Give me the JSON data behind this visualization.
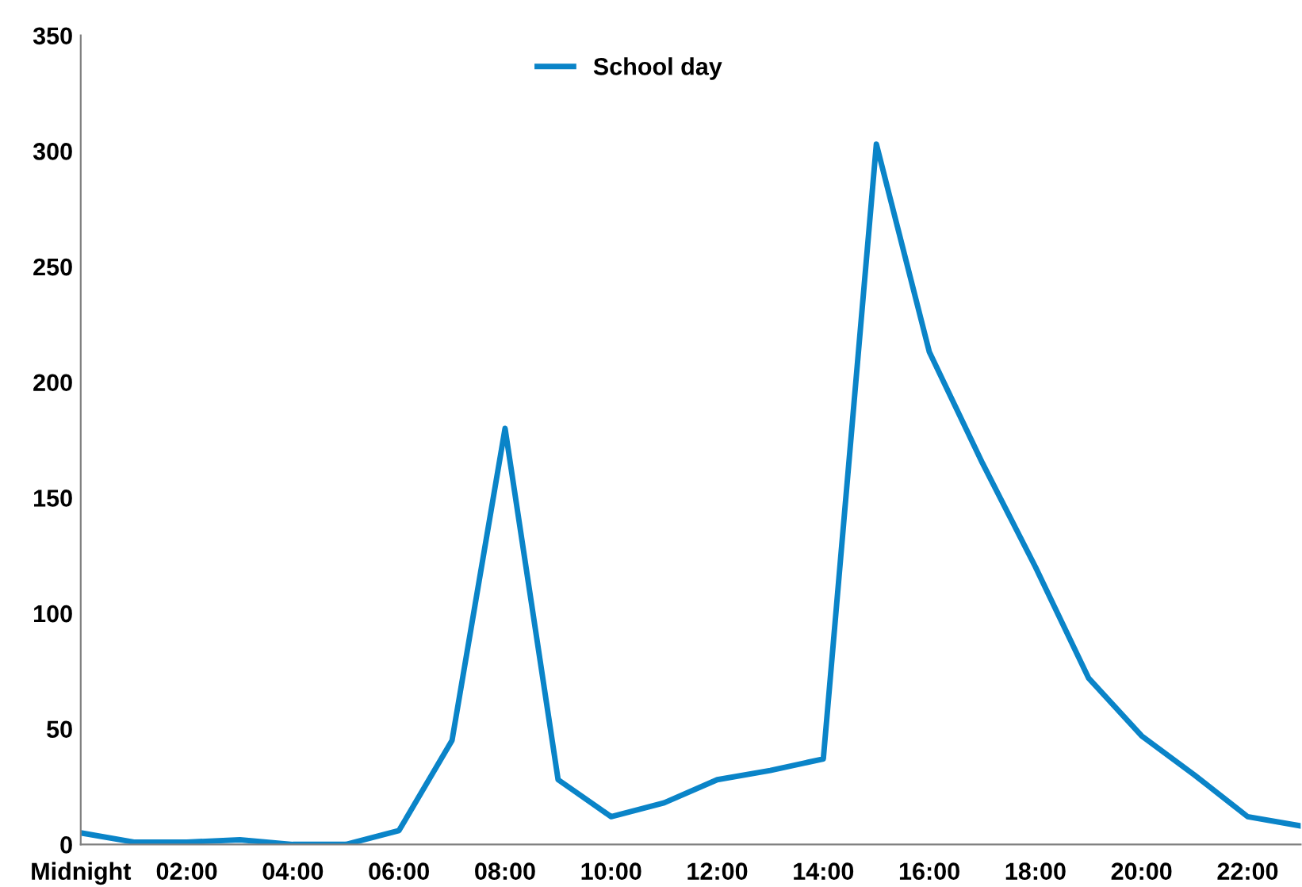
{
  "chart_data": {
    "type": "line",
    "categories": [
      "Midnight",
      null,
      "02:00",
      null,
      "04:00",
      null,
      "06:00",
      null,
      "08:00",
      null,
      "10:00",
      null,
      "12:00",
      null,
      "14:00",
      null,
      "16:00",
      null,
      "18:00",
      null,
      "20:00",
      null,
      "22:00",
      null
    ],
    "series": [
      {
        "name": "School day",
        "color": "#0a84c8",
        "values": [
          5,
          1,
          1,
          2,
          0,
          0,
          6,
          45,
          180,
          28,
          12,
          18,
          28,
          32,
          37,
          303,
          213,
          165,
          120,
          72,
          47,
          30,
          12,
          8
        ]
      }
    ],
    "ylim": [
      0,
      350
    ],
    "yticks": [
      0,
      50,
      100,
      150,
      200,
      250,
      300,
      350
    ],
    "grid": false,
    "legend": "top",
    "marker": "none",
    "line_style": "solid"
  }
}
